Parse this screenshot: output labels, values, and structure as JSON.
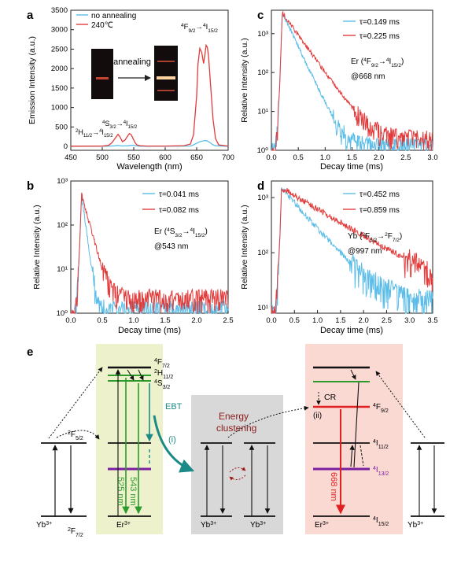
{
  "panel_letters": {
    "a": "a",
    "b": "b",
    "c": "c",
    "d": "d",
    "e": "e"
  },
  "chart_data": [
    {
      "id": "a",
      "type": "line",
      "panel": "a",
      "xlabel": "Wavelength (nm)",
      "ylabel": "Emission Intensity (a.u.)",
      "xlim": [
        450,
        700
      ],
      "ylim": [
        -100,
        3500
      ],
      "xticks": [
        450,
        500,
        550,
        600,
        650,
        700
      ],
      "yticks": [
        0,
        500,
        1000,
        1500,
        2000,
        2500,
        3000,
        3500
      ],
      "legend": [
        "no annealing",
        "240℃"
      ],
      "series": [
        {
          "name": "no annealing",
          "color": "#5bbde8",
          "x": [
            450,
            500,
            510,
            520,
            525,
            530,
            540,
            545,
            550,
            555,
            560,
            600,
            640,
            645,
            650,
            655,
            660,
            662,
            665,
            668,
            672,
            675,
            680,
            700
          ],
          "y": [
            5,
            5,
            8,
            15,
            25,
            12,
            15,
            25,
            30,
            12,
            5,
            5,
            10,
            40,
            80,
            120,
            140,
            145,
            150,
            130,
            90,
            50,
            15,
            5
          ]
        },
        {
          "name": "240℃",
          "color": "#e23b3b",
          "x": [
            450,
            500,
            510,
            515,
            520,
            525,
            528,
            532,
            536,
            540,
            543,
            546,
            549,
            552,
            555,
            560,
            570,
            600,
            630,
            640,
            645,
            650,
            652,
            655,
            658,
            661,
            663,
            665,
            667,
            669,
            672,
            676,
            680,
            685,
            700
          ],
          "y": [
            5,
            10,
            30,
            90,
            200,
            310,
            250,
            120,
            160,
            260,
            330,
            300,
            200,
            100,
            40,
            20,
            10,
            10,
            20,
            60,
            300,
            1300,
            2100,
            2520,
            2420,
            2130,
            2350,
            2600,
            2550,
            2300,
            1600,
            700,
            200,
            40,
            10
          ]
        }
      ],
      "annotations": {
        "peak_main": "4F9/2→4I15/2",
        "peak_mid": "4S3/2→4I15/2",
        "peak_left": "2H11/2→4I15/2",
        "inset": "annealing"
      }
    },
    {
      "id": "b",
      "type": "line",
      "panel": "b",
      "xlabel": "Decay time (ms)",
      "ylabel": "Relative Intensity (a.u.)",
      "xlim": [
        0,
        2.5
      ],
      "ylog": [
        1,
        1000
      ],
      "xticks": [
        0.0,
        0.5,
        1.0,
        1.5,
        2.0,
        2.5
      ],
      "ytick_labels": [
        "10⁰",
        "10¹",
        "10²",
        "10³"
      ],
      "series": [
        {
          "name": "τ=0.041 ms",
          "color": "#5bbde8",
          "tau": 0.041
        },
        {
          "name": "τ=0.082 ms",
          "color": "#e23b3b",
          "tau": 0.082
        }
      ],
      "peak_t": 0.17,
      "peak_y": 500,
      "floor": [
        1.2,
        2.2
      ],
      "annotation": "Er (4S3/2→4I15/2) @543 nm"
    },
    {
      "id": "c",
      "type": "line",
      "panel": "c",
      "xlabel": "Decay time (ms)",
      "ylabel": "Relative Intensity (a.u.)",
      "xlim": [
        0,
        3.0
      ],
      "ylog": [
        1,
        4000
      ],
      "xticks": [
        0.0,
        0.5,
        1.0,
        1.5,
        2.0,
        2.5,
        3.0
      ],
      "ytick_labels": [
        "10⁰",
        "10¹",
        "10²",
        "10³"
      ],
      "series": [
        {
          "name": "τ=0.149 ms",
          "color": "#5bbde8",
          "tau": 0.149
        },
        {
          "name": "τ=0.225 ms",
          "color": "#e23b3b",
          "tau": 0.225
        }
      ],
      "peak_t": 0.2,
      "peak_y": 3500,
      "floor": [
        1.3,
        2.0
      ],
      "annotation": "Er (4F9/2→4I15/2) @668 nm"
    },
    {
      "id": "d",
      "type": "line",
      "panel": "d",
      "xlabel": "Decay time (ms)",
      "ylabel": "Relative Intensity (a.u.)",
      "xlim": [
        0,
        3.5
      ],
      "ylog": [
        8,
        2000
      ],
      "xticks": [
        0.0,
        0.5,
        1.0,
        1.5,
        2.0,
        2.5,
        3.0,
        3.5
      ],
      "ytick_labels": [
        "10¹",
        "10²",
        "10³"
      ],
      "series": [
        {
          "name": "τ=0.452 ms",
          "color": "#5bbde8",
          "tau": 0.452
        },
        {
          "name": "τ=0.859 ms",
          "color": "#e23b3b",
          "tau": 0.859
        }
      ],
      "peak_t": 0.22,
      "peak_y": 1500,
      "floor": [
        12,
        14
      ],
      "annotation": "Yb (2F5/2→2F7/2) @997 nm"
    }
  ],
  "diagram": {
    "yb_left": {
      "upper": "2F5/2",
      "lower": "2F7/2",
      "ion": "Yb3+"
    },
    "er_left": {
      "levels": [
        "4F7/2",
        "2H11/2",
        "4S3/2"
      ],
      "ion": "Er3+",
      "emissions": [
        "525 nm",
        "543 nm"
      ]
    },
    "ebt": "EBT",
    "ebt_path": "(i)",
    "energy": [
      "Energy",
      "clustering"
    ],
    "yb_mid": [
      "Yb3+",
      "Yb3+"
    ],
    "er_right": {
      "levels": [
        "4F9/2",
        "4I11/2",
        "4I13/2",
        "4I15/2"
      ],
      "ion": "Er3+",
      "cr": "CR",
      "cr_path": "(ii)",
      "emission": "668 nm"
    },
    "yb_right": "Yb3+"
  }
}
